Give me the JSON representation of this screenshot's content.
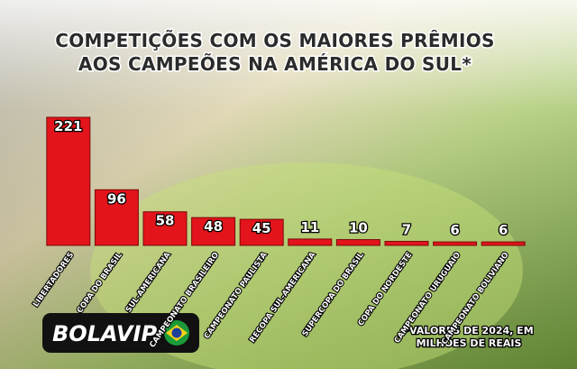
{
  "chart_data": {
    "type": "bar",
    "title": [
      "COMPETIÇÕES COM OS MAIORES PRÊMIOS",
      "AOS CAMPEÕES NA AMÉRICA DO SUL*"
    ],
    "categories": [
      "LIBERTADORES",
      "COPA DO BRASIL",
      "SUL-AMERICANA",
      "CAMPEONATO BRASILEIRO",
      "CAMPEONATO PAULISTA",
      "RECOPA SUL-AMERICANA",
      "SUPERCOPA DO BRASIL",
      "COPA DO NORDESTE",
      "CAMPEONATO URUGUAIO",
      "CAMPEONATO BOLIVIANO"
    ],
    "values": [
      221,
      96,
      58,
      48,
      45,
      11,
      10,
      7,
      6,
      6
    ],
    "color": "#e3141b",
    "note": [
      "*VALORES DE 2024, EM",
      "MILHÕES DE REAIS"
    ]
  },
  "brand": "BOLAVIP"
}
